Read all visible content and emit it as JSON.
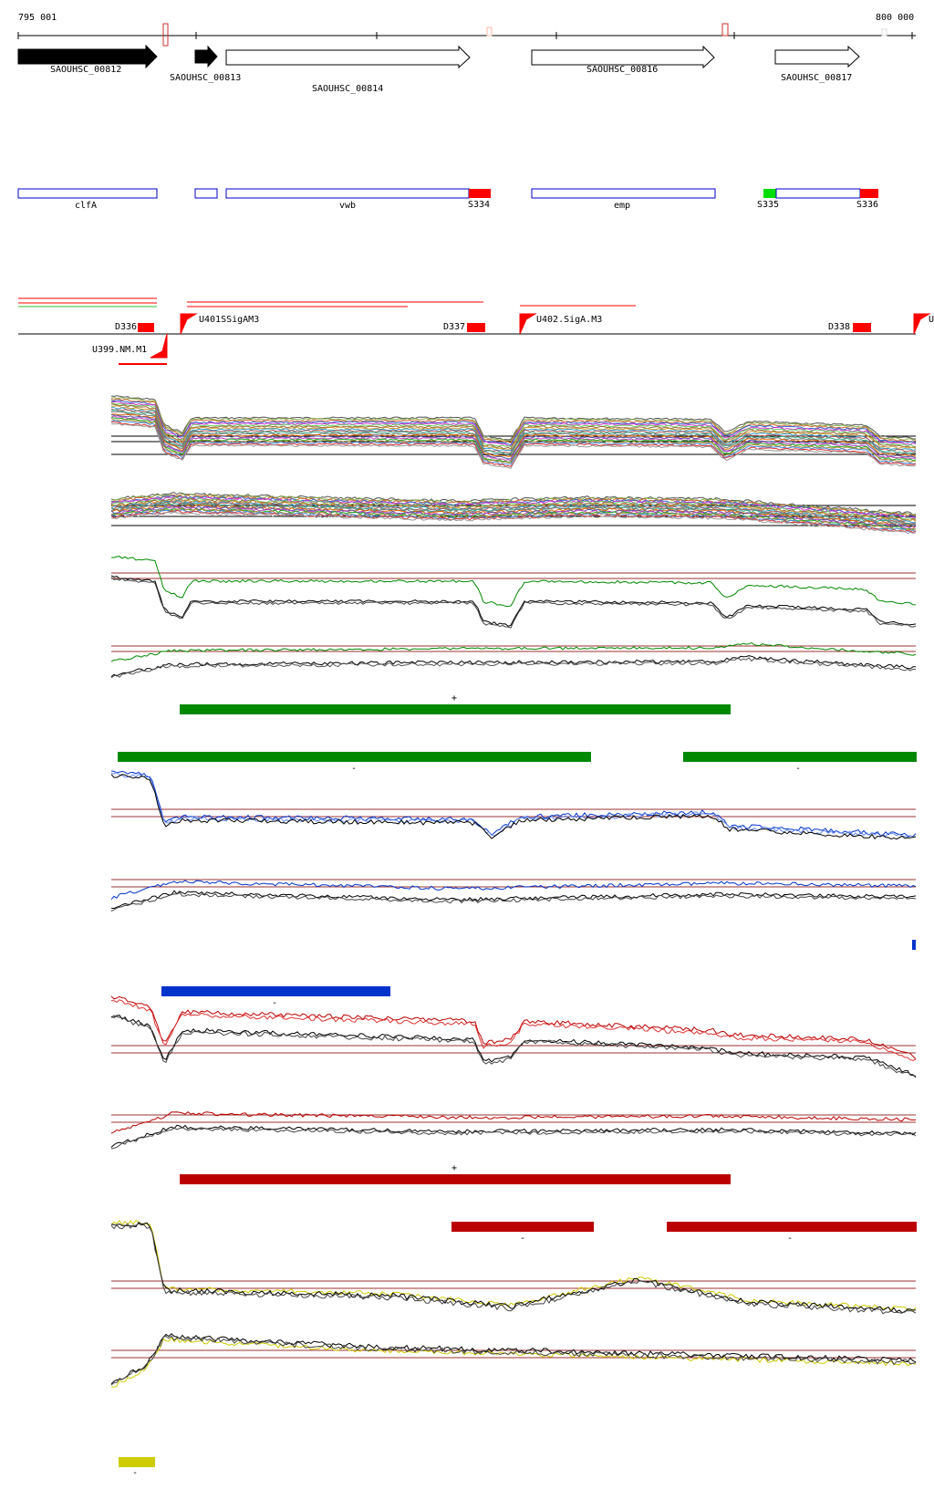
{
  "ruler": {
    "start_label": "795 001",
    "end_label": "800 000"
  },
  "genes": [
    {
      "id": "SAOUHSC_00812",
      "strand": "+",
      "filled": true
    },
    {
      "id": "SAOUHSC_00813",
      "strand": "+",
      "filled": true
    },
    {
      "id": "SAOUHSC_00814",
      "strand": "+",
      "filled": false
    },
    {
      "id": "SAOUHSC_00816",
      "strand": "+",
      "filled": false
    },
    {
      "id": "SAOUHSC_00817",
      "strand": "+",
      "filled": false
    }
  ],
  "gene_names": [
    "clfA",
    "",
    "vwb",
    "emp",
    ""
  ],
  "segment_labels": [
    "S334",
    "S335",
    "S336"
  ],
  "transcript_labels": [
    "D336",
    "U401SSigAM3",
    "D337",
    "U402.SigA.M3",
    "D338",
    "U399.NM.M1",
    "U"
  ],
  "strand_marks": {
    "plus": "+",
    "minus": "-"
  },
  "colors": {
    "gene_box": "#0000cc",
    "segment_red": "#ff0000",
    "segment_green": "#00dd00",
    "transcript_red": "#ff0000",
    "green_track": "#008800",
    "blue_track": "#0033cc",
    "red_track": "#bb0000",
    "yellow_track": "#cccc00",
    "threshold_line": "#993333"
  },
  "icons": [
    "arrow-icon",
    "flag-icon"
  ]
}
